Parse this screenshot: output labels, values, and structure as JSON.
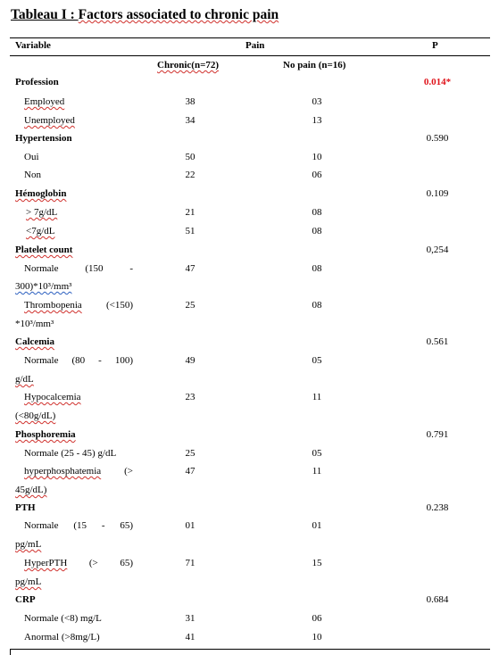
{
  "title": {
    "prefix": "Tableau I : ",
    "rest": "Factors associated to chronic pain"
  },
  "header": {
    "variable": "Variable",
    "pain": "Pain",
    "p": "P",
    "chronic": "Chronic(n=72)",
    "no_pain": "No pain (n=16)"
  },
  "sections": {
    "profession": {
      "label": "Profession",
      "p": "0.014*",
      "rows": [
        {
          "label": "Employed",
          "chronic": "38",
          "nopain": "03"
        },
        {
          "label": "Unemployed",
          "chronic": "34",
          "nopain": "13"
        }
      ]
    },
    "hypertension": {
      "label": "Hypertension",
      "p": "0.590",
      "rows": [
        {
          "label": "Oui",
          "chronic": "50",
          "nopain": "10"
        },
        {
          "label": "Non",
          "chronic": "22",
          "nopain": "06"
        }
      ]
    },
    "hemoglobin": {
      "label": "Hémoglobin",
      "p": "0.109",
      "rows": [
        {
          "label": "> 7g/dL",
          "chronic": "21",
          "nopain": "08"
        },
        {
          "label": "<7g/dL",
          "chronic": "51",
          "nopain": "08"
        }
      ]
    },
    "platelet": {
      "label": "Platelet count",
      "p": "0,254",
      "rows": [
        {
          "label_a": "Normale",
          "label_b": "(150",
          "label_c": "-",
          "label_d": "300)*10³/mm³",
          "chronic": "47",
          "nopain": "08"
        },
        {
          "label_a": "Thrombopenia",
          "label_b": "(<150)",
          "label_d": "*10³/mm³",
          "chronic": "25",
          "nopain": "08"
        }
      ]
    },
    "calcemia": {
      "label": "Calcemia",
      "p": "0.561",
      "rows": [
        {
          "label_a": "Normale",
          "label_b": "(80",
          "label_c": "-",
          "label_e": "100)",
          "label_d": "g/dL",
          "chronic": "49",
          "nopain": "05"
        },
        {
          "label_a": "Hypocalcemia",
          "label_d": "(<80g/dL)",
          "chronic": "23",
          "nopain": "11"
        }
      ]
    },
    "phosphoremia": {
      "label": "Phosphoremia",
      "p": "0.791",
      "rows": [
        {
          "label": "Normale (25 - 45) g/dL",
          "chronic": "25",
          "nopain": "05"
        },
        {
          "label_a": "hyperphosphatemia",
          "label_b": "(>",
          "label_d": "45g/dL)",
          "chronic": "47",
          "nopain": "11"
        }
      ]
    },
    "pth": {
      "label": "PTH",
      "p": "0.238",
      "rows": [
        {
          "label_a": "Normale",
          "label_b": "(15",
          "label_c": "-",
          "label_e": "65)",
          "label_d": "pg/mL",
          "chronic": "01",
          "nopain": "01"
        },
        {
          "label_a": "HyperPTH",
          "label_b": "(>",
          "label_e": "65)",
          "label_d": "pg/mL",
          "chronic": "71",
          "nopain": "15"
        }
      ]
    },
    "crp": {
      "label": "CRP",
      "p": "0.684",
      "rows": [
        {
          "label": "Normale (<8) mg/L",
          "chronic": "31",
          "nopain": "06"
        },
        {
          "label": "Anormal (>8mg/L)",
          "chronic": "41",
          "nopain": "10"
        }
      ]
    }
  }
}
